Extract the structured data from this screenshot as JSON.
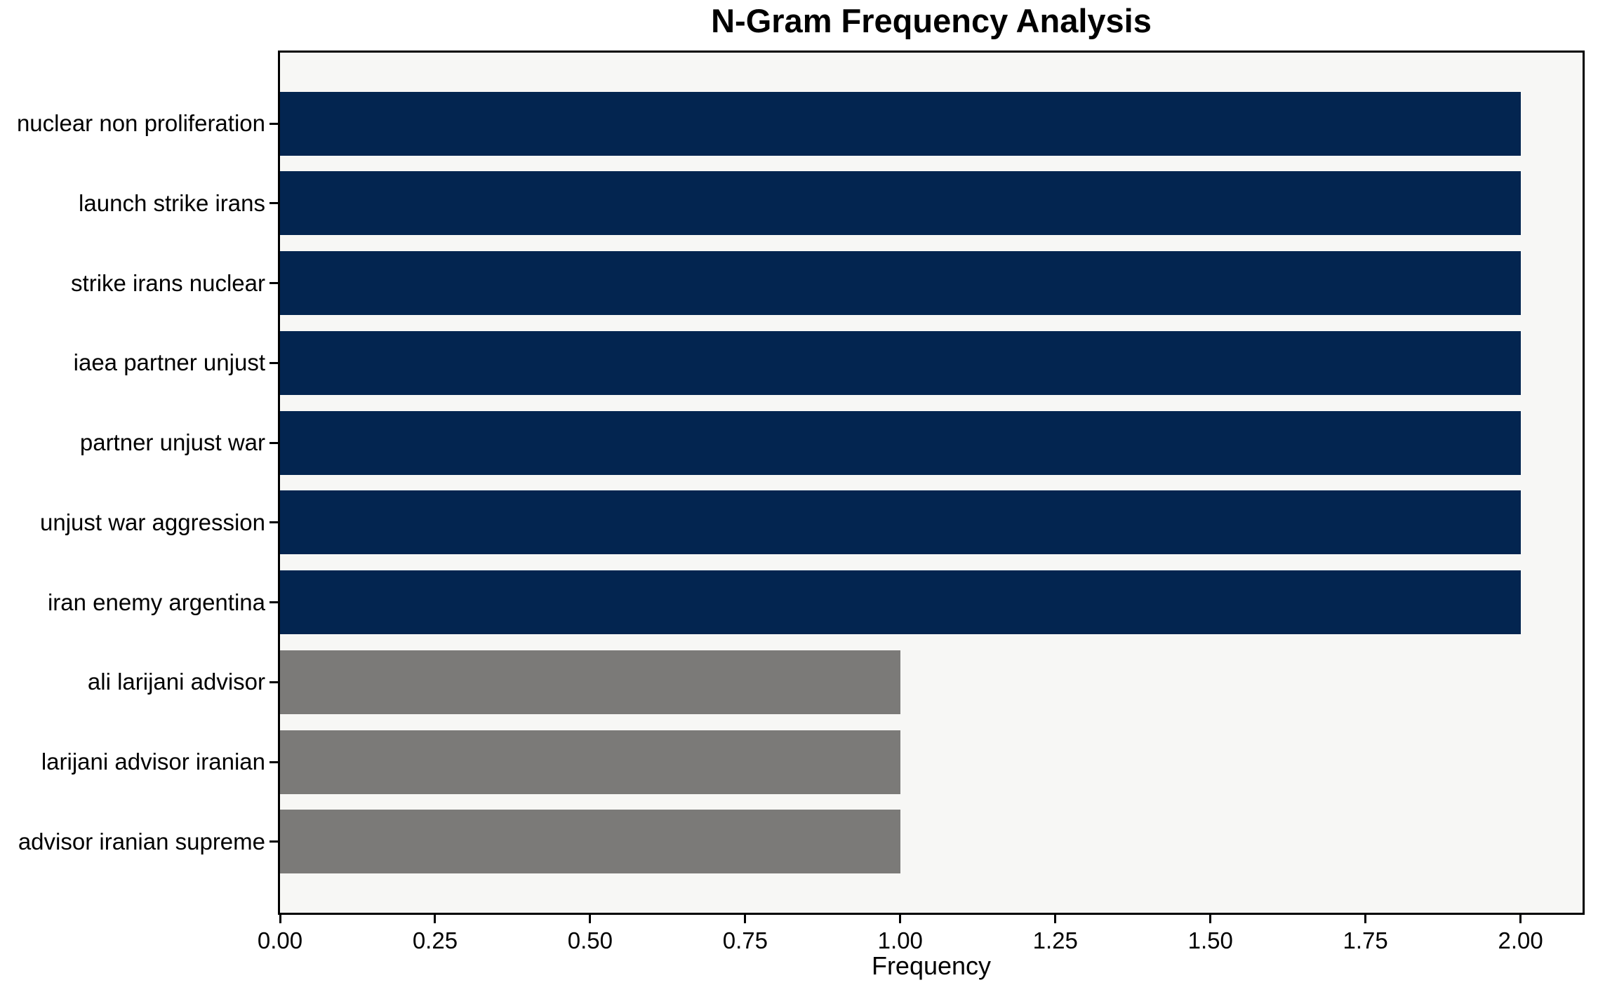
{
  "chart_data": {
    "type": "bar",
    "orientation": "horizontal",
    "title": "N-Gram Frequency Analysis",
    "xlabel": "Frequency",
    "ylabel": "",
    "categories": [
      "nuclear non proliferation",
      "launch strike irans",
      "strike irans nuclear",
      "iaea partner unjust",
      "partner unjust war",
      "unjust war aggression",
      "iran enemy argentina",
      "ali larijani advisor",
      "larijani advisor iranian",
      "advisor iranian supreme"
    ],
    "values": [
      2,
      2,
      2,
      2,
      2,
      2,
      2,
      1,
      1,
      1
    ],
    "bar_colors": [
      "#032550",
      "#032550",
      "#032550",
      "#032550",
      "#032550",
      "#032550",
      "#032550",
      "#7b7a78",
      "#7b7a78",
      "#7b7a78"
    ],
    "xlim": [
      0,
      2.1
    ],
    "xticks": [
      0,
      0.25,
      0.5,
      0.75,
      1.0,
      1.25,
      1.5,
      1.75,
      2.0
    ],
    "xtick_labels": [
      "0.00",
      "0.25",
      "0.50",
      "0.75",
      "1.00",
      "1.25",
      "1.50",
      "1.75",
      "2.00"
    ],
    "grid": false,
    "legend": false,
    "plot_bg": "#f7f7f5",
    "colors": {
      "navy_bar": "#032550",
      "gray_bar": "#7b7a78",
      "spine": "#000000",
      "text": "#000000"
    },
    "bar_height_fraction": 0.8,
    "y_margin_fraction": 0.05
  }
}
